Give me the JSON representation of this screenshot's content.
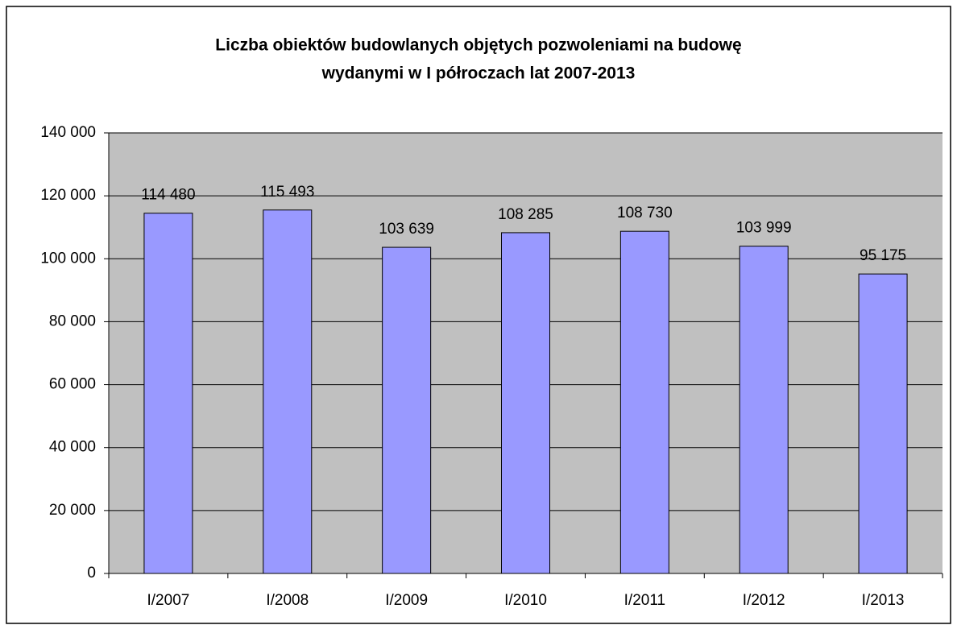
{
  "chart_data": {
    "type": "bar",
    "title": [
      "Liczba obiektów budowlanych objętych pozwoleniami na budowę",
      "wydanymi w I półroczach lat 2007-2013"
    ],
    "categories": [
      "I/2007",
      "I/2008",
      "I/2009",
      "I/2010",
      "I/2011",
      "I/2012",
      "I/2013"
    ],
    "values": [
      114480,
      115493,
      103639,
      108285,
      108730,
      103999,
      95175
    ],
    "value_labels": [
      "114 480",
      "115 493",
      "103 639",
      "108 285",
      "108 730",
      "103 999",
      "95 175"
    ],
    "color": "#9999ff",
    "ylim": [
      0,
      140000
    ],
    "yticks": [
      0,
      {
        "value": 20000,
        "label": "20 000"
      },
      {
        "value": 40000,
        "label": "40 000"
      },
      {
        "value": 60000,
        "label": "60 000"
      },
      {
        "value": 80000,
        "label": "80 000"
      },
      {
        "value": 100000,
        "label": "100 000"
      },
      {
        "value": 120000,
        "label": "120 000"
      },
      {
        "value": 140000,
        "label": "140 000"
      }
    ],
    "grid": true
  }
}
